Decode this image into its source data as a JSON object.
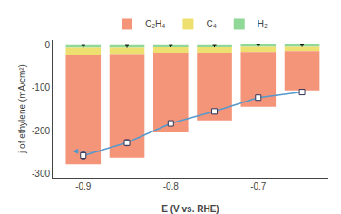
{
  "chart_data": {
    "type": "bar",
    "stacked": true,
    "x": [
      -0.9,
      -0.85,
      -0.8,
      -0.75,
      -0.7,
      -0.65
    ],
    "xlabel": "E (V vs. RHE)",
    "ylabel": "j of ethylene (mA/cm²)",
    "xlim": [
      -0.935,
      -0.62
    ],
    "ylim": [
      -310,
      12
    ],
    "xticks": [
      -0.9,
      -0.8,
      -0.7
    ],
    "yticks": [
      0,
      -100,
      -200,
      -300
    ],
    "grid": false,
    "legend": "top",
    "series": [
      {
        "name": "H₂",
        "color": "#90D898",
        "values": [
          -6,
          -6,
          -5,
          -5,
          -4,
          -4
        ],
        "errors": [
          5,
          5,
          4,
          4,
          4,
          4
        ]
      },
      {
        "name": "C₄",
        "color": "#EEE070",
        "values": [
          -18,
          -17,
          -14,
          -13,
          -12,
          -10
        ]
      },
      {
        "name": "C₂H₄",
        "color": "#F4957A",
        "values": [
          -255,
          -240,
          -185,
          -158,
          -128,
          -92
        ]
      },
      {
        "type": "line",
        "color": "#5599CC",
        "marker": "square",
        "line_style": "solid",
        "values": [
          -258,
          -228,
          -183,
          -155,
          -123,
          -110
        ],
        "errors": [
          8,
          7,
          5,
          5,
          5,
          5
        ]
      }
    ],
    "annotations": [
      {
        "x": -0.912,
        "y": -248,
        "from_x": -0.878,
        "from_y": -248
      }
    ]
  }
}
